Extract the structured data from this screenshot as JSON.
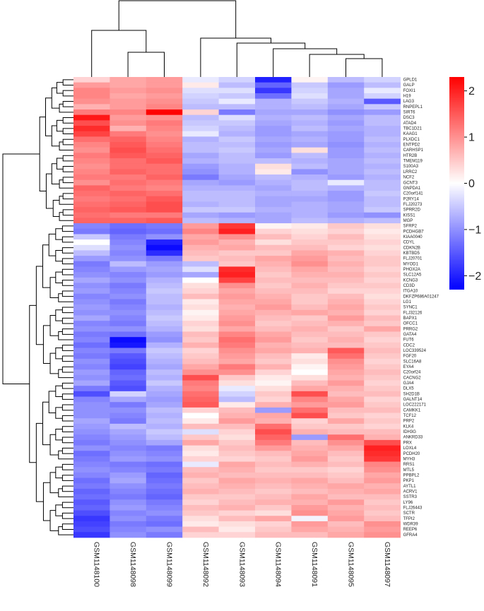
{
  "chart_data": {
    "type": "heatmap",
    "samples": [
      "GSM1148100",
      "GSM1148098",
      "GSM1148099",
      "GSM1148092",
      "GSM1148093",
      "GSM1148094",
      "GSM1148091",
      "GSM1148095",
      "GSM1148097"
    ],
    "genes": [
      "GPLD1",
      "GALP",
      "FOXI1",
      "H19",
      "LAG3",
      "RNPEPL1",
      "SIRT6",
      "DSC3",
      "ATAD4",
      "TBC1D21",
      "KAAG1",
      "PLXDC1",
      "ENTPD2",
      "CARHSP1",
      "HTR2B",
      "TMEM119",
      "S100A3",
      "LRRC2",
      "NCF2",
      "GCNT3",
      "GNPDA1",
      "C20orf141",
      "P2RY14",
      "FLJ20273",
      "SPRR2D",
      "KISS1",
      "MGP",
      "SFRP2",
      "PCDHGB7",
      "KIAA0040",
      "CDYL",
      "CDKN2B",
      "KBTBD5",
      "FLJ20701",
      "MYOD1",
      "PHOX2A",
      "SLC12A5",
      "KCNG3",
      "CD3D",
      "ITGA10",
      "DKFZP686A01247",
      "LG1",
      "SYNC1",
      "FLJ32126",
      "BAPX1",
      "OFCC1",
      "PRRG2",
      "GATA4",
      "FUT6",
      "CDC2",
      "LOC339524",
      "FGF20",
      "SLC16A8",
      "EYA4",
      "C20orf24",
      "CACNG2",
      "GJA4",
      "DLX5",
      "SH2D1B",
      "GALNT14",
      "LOC222171",
      "CAMKK1",
      "TCF12",
      "PRP2",
      "KLK4",
      "IDH3G",
      "ANKRD33",
      "PRX",
      "LOXL4",
      "PCDH20",
      "MYH3",
      "RRS1",
      "MTL5",
      "PPBPL2",
      "PKP1",
      "AYTL1",
      "ACRV1",
      "SSTR3",
      "LY96",
      "FLJ26443",
      "SCTR",
      "TFPI2",
      "WDR39",
      "REEP6",
      "GFRA4"
    ],
    "values": [
      [
        0.4,
        0.8,
        0.9,
        -0.2,
        -0.4,
        -2.0,
        0.1,
        -0.6,
        -0.4
      ],
      [
        0.9,
        0.8,
        0.9,
        0.2,
        -0.6,
        -1.4,
        -0.5,
        -0.9,
        -0.6
      ],
      [
        1.1,
        0.9,
        1.0,
        -0.3,
        -0.3,
        -1.8,
        -0.4,
        -0.8,
        -0.2
      ],
      [
        1.1,
        0.8,
        0.9,
        -0.4,
        -0.5,
        -1.3,
        -0.3,
        -0.8,
        -0.4
      ],
      [
        1.0,
        0.9,
        1.0,
        -0.5,
        -0.2,
        -0.7,
        -0.5,
        -0.7,
        -1.5
      ],
      [
        0.7,
        0.9,
        1.1,
        -0.6,
        -0.6,
        -0.7,
        -0.6,
        -0.8,
        -0.5
      ],
      [
        1.2,
        1.1,
        2.3,
        0.4,
        -1.2,
        -0.8,
        -0.8,
        -1.0,
        -0.9
      ],
      [
        2.1,
        0.9,
        1.0,
        -0.6,
        -0.3,
        -0.7,
        -0.6,
        -0.8,
        -0.6
      ],
      [
        1.6,
        1.0,
        1.2,
        -0.5,
        -0.5,
        -0.8,
        -0.7,
        -0.9,
        -0.6
      ],
      [
        1.9,
        0.7,
        1.1,
        -0.4,
        -0.6,
        -0.9,
        -0.6,
        -0.8,
        -0.7
      ],
      [
        1.7,
        1.2,
        1.0,
        -0.2,
        -0.7,
        -0.9,
        -0.8,
        -0.9,
        -0.7
      ],
      [
        1.3,
        1.4,
        1.1,
        -0.7,
        -0.5,
        -0.8,
        -0.7,
        -0.9,
        -0.6
      ],
      [
        1.1,
        1.5,
        1.2,
        -0.6,
        -0.6,
        -0.9,
        -0.8,
        -1.0,
        -0.7
      ],
      [
        1.0,
        1.6,
        1.3,
        -0.6,
        -0.5,
        -0.8,
        0.3,
        -0.9,
        -0.6
      ],
      [
        1.2,
        1.5,
        1.4,
        -0.8,
        -0.6,
        -0.9,
        -0.6,
        -0.9,
        -0.7
      ],
      [
        1.1,
        1.3,
        1.5,
        -0.7,
        -0.6,
        -0.6,
        -0.7,
        -0.8,
        -0.6
      ],
      [
        1.0,
        1.3,
        1.3,
        -0.9,
        -0.7,
        0.3,
        -0.6,
        -0.8,
        -0.7
      ],
      [
        1.1,
        1.4,
        1.3,
        -1.0,
        -0.7,
        0.2,
        -1.0,
        -0.8,
        -0.6
      ],
      [
        1.2,
        1.2,
        1.4,
        -1.2,
        -0.8,
        -0.6,
        -0.7,
        -0.9,
        -0.7
      ],
      [
        1.0,
        1.3,
        1.2,
        -0.8,
        -0.9,
        -0.7,
        -0.6,
        -0.2,
        -0.6
      ],
      [
        1.4,
        1.2,
        1.1,
        -0.7,
        -0.7,
        -0.8,
        -0.6,
        -0.7,
        -0.6
      ],
      [
        1.3,
        1.4,
        1.3,
        -0.6,
        -0.6,
        -0.7,
        -0.7,
        -0.9,
        -0.5
      ],
      [
        1.2,
        1.3,
        1.5,
        -0.6,
        -0.6,
        -0.8,
        -0.8,
        -0.9,
        -0.6
      ],
      [
        1.3,
        1.4,
        1.6,
        -0.7,
        -0.6,
        -0.8,
        -0.7,
        -0.8,
        -0.6
      ],
      [
        1.4,
        1.5,
        1.6,
        -0.5,
        -0.5,
        -0.7,
        -0.7,
        -0.8,
        -0.5
      ],
      [
        1.3,
        1.2,
        1.2,
        -0.8,
        -0.9,
        -0.8,
        -0.7,
        -0.9,
        -1.0
      ],
      [
        1.4,
        1.4,
        1.5,
        -0.6,
        -0.7,
        -0.8,
        -0.6,
        -0.7,
        -0.6
      ],
      [
        -1.1,
        -1.3,
        -1.2,
        0.9,
        1.8,
        0.1,
        0.2,
        0.5,
        0.3
      ],
      [
        -1.2,
        -1.4,
        -1.3,
        1.1,
        2.0,
        0.4,
        0.3,
        0.4,
        0.2
      ],
      [
        -0.5,
        -1.2,
        -1.0,
        0.8,
        1.0,
        0.6,
        0.4,
        0.6,
        0.3
      ],
      [
        0.0,
        -1.1,
        -2.0,
        0.9,
        0.7,
        0.3,
        0.5,
        0.5,
        0.4
      ],
      [
        -0.3,
        -1.0,
        -2.2,
        0.7,
        0.8,
        0.6,
        0.6,
        0.4,
        0.3
      ],
      [
        -0.6,
        -1.1,
        -1.9,
        0.6,
        0.5,
        0.5,
        0.8,
        0.7,
        0.4
      ],
      [
        -0.9,
        -1.0,
        -1.2,
        0.5,
        0.6,
        0.8,
        0.9,
        0.6,
        0.5
      ],
      [
        -1.2,
        -0.6,
        -0.9,
        -0.6,
        0.5,
        0.7,
        1.0,
        0.7,
        0.5
      ],
      [
        -1.1,
        -0.9,
        -0.8,
        -0.3,
        1.9,
        0.6,
        0.8,
        0.6,
        0.4
      ],
      [
        -1.0,
        -1.1,
        -0.9,
        -0.8,
        2.0,
        0.5,
        0.7,
        0.7,
        0.5
      ],
      [
        -0.8,
        -1.0,
        -0.7,
        0.0,
        1.7,
        0.6,
        0.6,
        0.6,
        0.4
      ],
      [
        -1.0,
        -1.2,
        -0.6,
        0.3,
        1.0,
        0.5,
        0.7,
        0.5,
        0.5
      ],
      [
        -0.9,
        -1.1,
        -0.5,
        0.4,
        0.8,
        0.6,
        0.6,
        0.4,
        0.4
      ],
      [
        -1.1,
        -1.0,
        -0.6,
        0.6,
        0.9,
        0.7,
        0.5,
        0.6,
        0.3
      ],
      [
        -1.0,
        -1.2,
        -0.6,
        0.2,
        0.8,
        0.8,
        0.5,
        0.7,
        0.4
      ],
      [
        -0.9,
        -1.1,
        -0.7,
        0.3,
        0.7,
        0.9,
        0.6,
        0.8,
        0.5
      ],
      [
        -1.0,
        -1.0,
        -0.6,
        0.1,
        0.8,
        0.7,
        0.8,
        0.7,
        0.4
      ],
      [
        -0.8,
        -1.1,
        -0.5,
        0.2,
        0.9,
        0.6,
        0.5,
        0.9,
        0.6
      ],
      [
        -1.1,
        -1.2,
        -0.6,
        0.4,
        1.0,
        0.5,
        0.6,
        0.7,
        0.5
      ],
      [
        -1.0,
        -1.0,
        -0.7,
        0.3,
        0.8,
        0.6,
        0.7,
        0.5,
        0.8
      ],
      [
        -1.2,
        -1.3,
        -0.9,
        0.6,
        1.1,
        0.8,
        0.6,
        0.6,
        0.5
      ],
      [
        -1.1,
        -2.2,
        -1.0,
        0.5,
        1.3,
        0.9,
        0.5,
        0.7,
        0.4
      ],
      [
        -1.3,
        -2.1,
        -0.7,
        0.7,
        1.2,
        0.7,
        0.6,
        0.6,
        0.5
      ],
      [
        -1.1,
        -1.2,
        -0.5,
        0.4,
        1.0,
        0.8,
        0.7,
        1.5,
        0.6
      ],
      [
        -1.2,
        -1.5,
        -0.6,
        0.5,
        0.9,
        0.6,
        0.2,
        1.3,
        0.5
      ],
      [
        -1.0,
        -1.6,
        -0.7,
        0.6,
        0.8,
        0.5,
        0.3,
        1.0,
        0.4
      ],
      [
        -1.1,
        -1.7,
        -0.8,
        0.8,
        1.2,
        0.7,
        0.1,
        0.9,
        0.5
      ],
      [
        -0.9,
        -1.4,
        -0.6,
        1.0,
        1.0,
        0.4,
        0.0,
        0.8,
        0.6
      ],
      [
        -1.0,
        -1.3,
        -0.7,
        1.6,
        0.5,
        0.2,
        0.3,
        0.7,
        0.5
      ],
      [
        -0.8,
        -1.5,
        -0.5,
        1.2,
        0.3,
        0.1,
        0.6,
        0.9,
        0.4
      ],
      [
        -1.2,
        -1.6,
        -0.7,
        1.1,
        -0.2,
        0.3,
        0.8,
        0.7,
        0.5
      ],
      [
        -1.6,
        -0.4,
        -0.8,
        1.3,
        -0.4,
        0.5,
        1.6,
        0.6,
        0.6
      ],
      [
        -1.1,
        -0.8,
        -0.9,
        1.4,
        -0.6,
        0.4,
        1.1,
        0.8,
        0.4
      ],
      [
        -1.0,
        -1.2,
        -0.8,
        1.5,
        0.2,
        0.7,
        0.9,
        0.9,
        0.5
      ],
      [
        -1.0,
        -1.0,
        -0.6,
        0.4,
        0.6,
        -0.9,
        1.3,
        0.6,
        0.6
      ],
      [
        -1.0,
        -1.1,
        -0.7,
        0.0,
        0.7,
        0.8,
        1.6,
        0.5,
        0.4
      ],
      [
        -0.8,
        -1.2,
        -0.6,
        0.2,
        0.9,
        0.7,
        0.4,
        0.8,
        0.5
      ],
      [
        -0.9,
        -0.6,
        -0.7,
        0.6,
        0.6,
        1.3,
        0.5,
        0.5,
        0.4
      ],
      [
        -1.0,
        -0.8,
        -0.5,
        -0.3,
        0.4,
        1.6,
        0.7,
        0.6,
        0.6
      ],
      [
        -1.1,
        -0.9,
        -0.6,
        0.5,
        0.3,
        1.4,
        -0.9,
        1.3,
        0.7
      ],
      [
        -1.2,
        -1.0,
        -0.8,
        0.8,
        0.5,
        1.2,
        0.6,
        1.0,
        1.6
      ],
      [
        -1.0,
        -1.1,
        -1.2,
        0.3,
        0.6,
        0.9,
        0.7,
        0.8,
        2.0
      ],
      [
        -1.3,
        -1.0,
        -1.1,
        0.2,
        0.5,
        0.6,
        0.8,
        0.6,
        1.9
      ],
      [
        -1.2,
        -0.9,
        -1.0,
        0.4,
        0.4,
        0.5,
        0.9,
        0.5,
        1.8
      ],
      [
        -1.1,
        -1.2,
        -1.3,
        -0.2,
        0.8,
        0.6,
        0.7,
        0.6,
        1.1
      ],
      [
        -1.0,
        -1.1,
        -1.2,
        0.6,
        0.7,
        0.5,
        0.5,
        0.4,
        1.0
      ],
      [
        -1.1,
        -0.9,
        -1.4,
        0.7,
        0.6,
        0.6,
        0.6,
        0.5,
        0.8
      ],
      [
        -1.3,
        -0.8,
        -1.3,
        0.5,
        0.8,
        0.7,
        0.8,
        0.6,
        0.9
      ],
      [
        -1.2,
        -1.0,
        -1.2,
        0.6,
        0.7,
        0.6,
        0.7,
        0.8,
        0.7
      ],
      [
        -1.4,
        -1.1,
        -1.3,
        0.7,
        0.6,
        0.5,
        0.6,
        0.7,
        0.8
      ],
      [
        -1.3,
        -1.2,
        -1.4,
        0.5,
        0.5,
        0.6,
        0.8,
        0.6,
        0.6
      ],
      [
        -1.5,
        -1.0,
        -1.2,
        0.4,
        0.6,
        0.7,
        0.7,
        0.9,
        0.5
      ],
      [
        -1.4,
        -0.9,
        -1.1,
        0.6,
        0.7,
        0.5,
        0.9,
        0.7,
        0.6
      ],
      [
        -1.6,
        -1.1,
        -1.0,
        0.5,
        0.4,
        0.3,
        1.0,
        0.8,
        0.5
      ],
      [
        -1.8,
        -1.0,
        -1.2,
        0.3,
        0.6,
        0.8,
        -0.1,
        0.9,
        0.6
      ],
      [
        -1.7,
        -1.2,
        -1.3,
        0.2,
        0.3,
        0.4,
        0.9,
        0.6,
        1.0
      ],
      [
        -1.6,
        -1.1,
        -1.0,
        0.6,
        0.2,
        0.5,
        0.8,
        0.7,
        0.9
      ],
      [
        -1.8,
        -1.0,
        -1.2,
        0.4,
        0.4,
        0.6,
        0.6,
        0.8,
        1.0
      ]
    ],
    "color_scale": {
      "ticks": [
        "2",
        "1",
        "0",
        "−1",
        "−2"
      ],
      "min": -2.3,
      "max": 2.3,
      "colors": [
        "#0000ff",
        "#ffffff",
        "#ff0000"
      ]
    }
  }
}
